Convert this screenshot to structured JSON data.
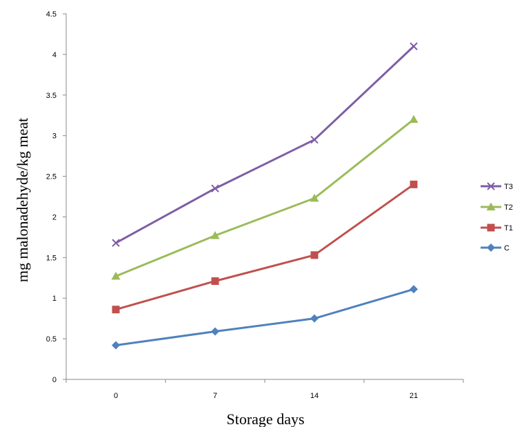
{
  "chart_data": {
    "type": "line",
    "title": "",
    "xlabel": "Storage days",
    "ylabel": "mg malonadehyde/kg meat",
    "categories": [
      "0",
      "7",
      "14",
      "21"
    ],
    "ylim": [
      0,
      4.5
    ],
    "yticks": [
      "0",
      "0.5",
      "1",
      "1.5",
      "2",
      "2.5",
      "3",
      "3.5",
      "4",
      "4.5"
    ],
    "grid": false,
    "legend_position": "right",
    "series": [
      {
        "name": "T3",
        "values": [
          1.68,
          2.35,
          2.95,
          4.1
        ],
        "color": "#7e5da6",
        "marker": "x"
      },
      {
        "name": "T2",
        "values": [
          1.27,
          1.77,
          2.23,
          3.2
        ],
        "color": "#9bbb59",
        "marker": "triangle"
      },
      {
        "name": "T1",
        "values": [
          0.86,
          1.21,
          1.53,
          2.4
        ],
        "color": "#c0504d",
        "marker": "square"
      },
      {
        "name": "C",
        "values": [
          0.42,
          0.59,
          0.75,
          1.11
        ],
        "color": "#4f81bd",
        "marker": "diamond"
      }
    ]
  }
}
